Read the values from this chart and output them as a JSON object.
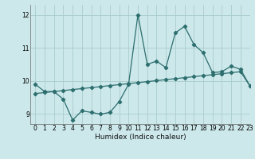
{
  "xlabel": "Humidex (Indice chaleur)",
  "bg_color": "#cce8eb",
  "line_color": "#2d6e6e",
  "grid_color": "#aacccc",
  "xlim": [
    -0.5,
    23
  ],
  "ylim": [
    8.7,
    12.3
  ],
  "yticks": [
    9,
    10,
    11,
    12
  ],
  "xticks": [
    0,
    1,
    2,
    3,
    4,
    5,
    6,
    7,
    8,
    9,
    10,
    11,
    12,
    13,
    14,
    15,
    16,
    17,
    18,
    19,
    20,
    21,
    22,
    23
  ],
  "series1_x": [
    0,
    1,
    2,
    3,
    4,
    5,
    6,
    7,
    8,
    9,
    10,
    11,
    12,
    13,
    14,
    15,
    16,
    17,
    18,
    19,
    20,
    21,
    22,
    23
  ],
  "series1_y": [
    9.9,
    9.68,
    9.68,
    9.45,
    8.82,
    9.1,
    9.05,
    9.0,
    9.05,
    9.38,
    9.9,
    12.0,
    10.5,
    10.6,
    10.4,
    11.45,
    11.65,
    11.1,
    10.85,
    10.25,
    10.28,
    10.45,
    10.35,
    9.85
  ],
  "series2_x": [
    0,
    1,
    2,
    3,
    4,
    5,
    6,
    7,
    8,
    9,
    10,
    11,
    12,
    13,
    14,
    15,
    16,
    17,
    18,
    19,
    20,
    21,
    22,
    23
  ],
  "series2_y": [
    9.62,
    9.65,
    9.68,
    9.71,
    9.74,
    9.77,
    9.8,
    9.83,
    9.86,
    9.89,
    9.92,
    9.95,
    9.98,
    10.01,
    10.04,
    10.07,
    10.1,
    10.13,
    10.16,
    10.19,
    10.22,
    10.25,
    10.28,
    9.85
  ]
}
